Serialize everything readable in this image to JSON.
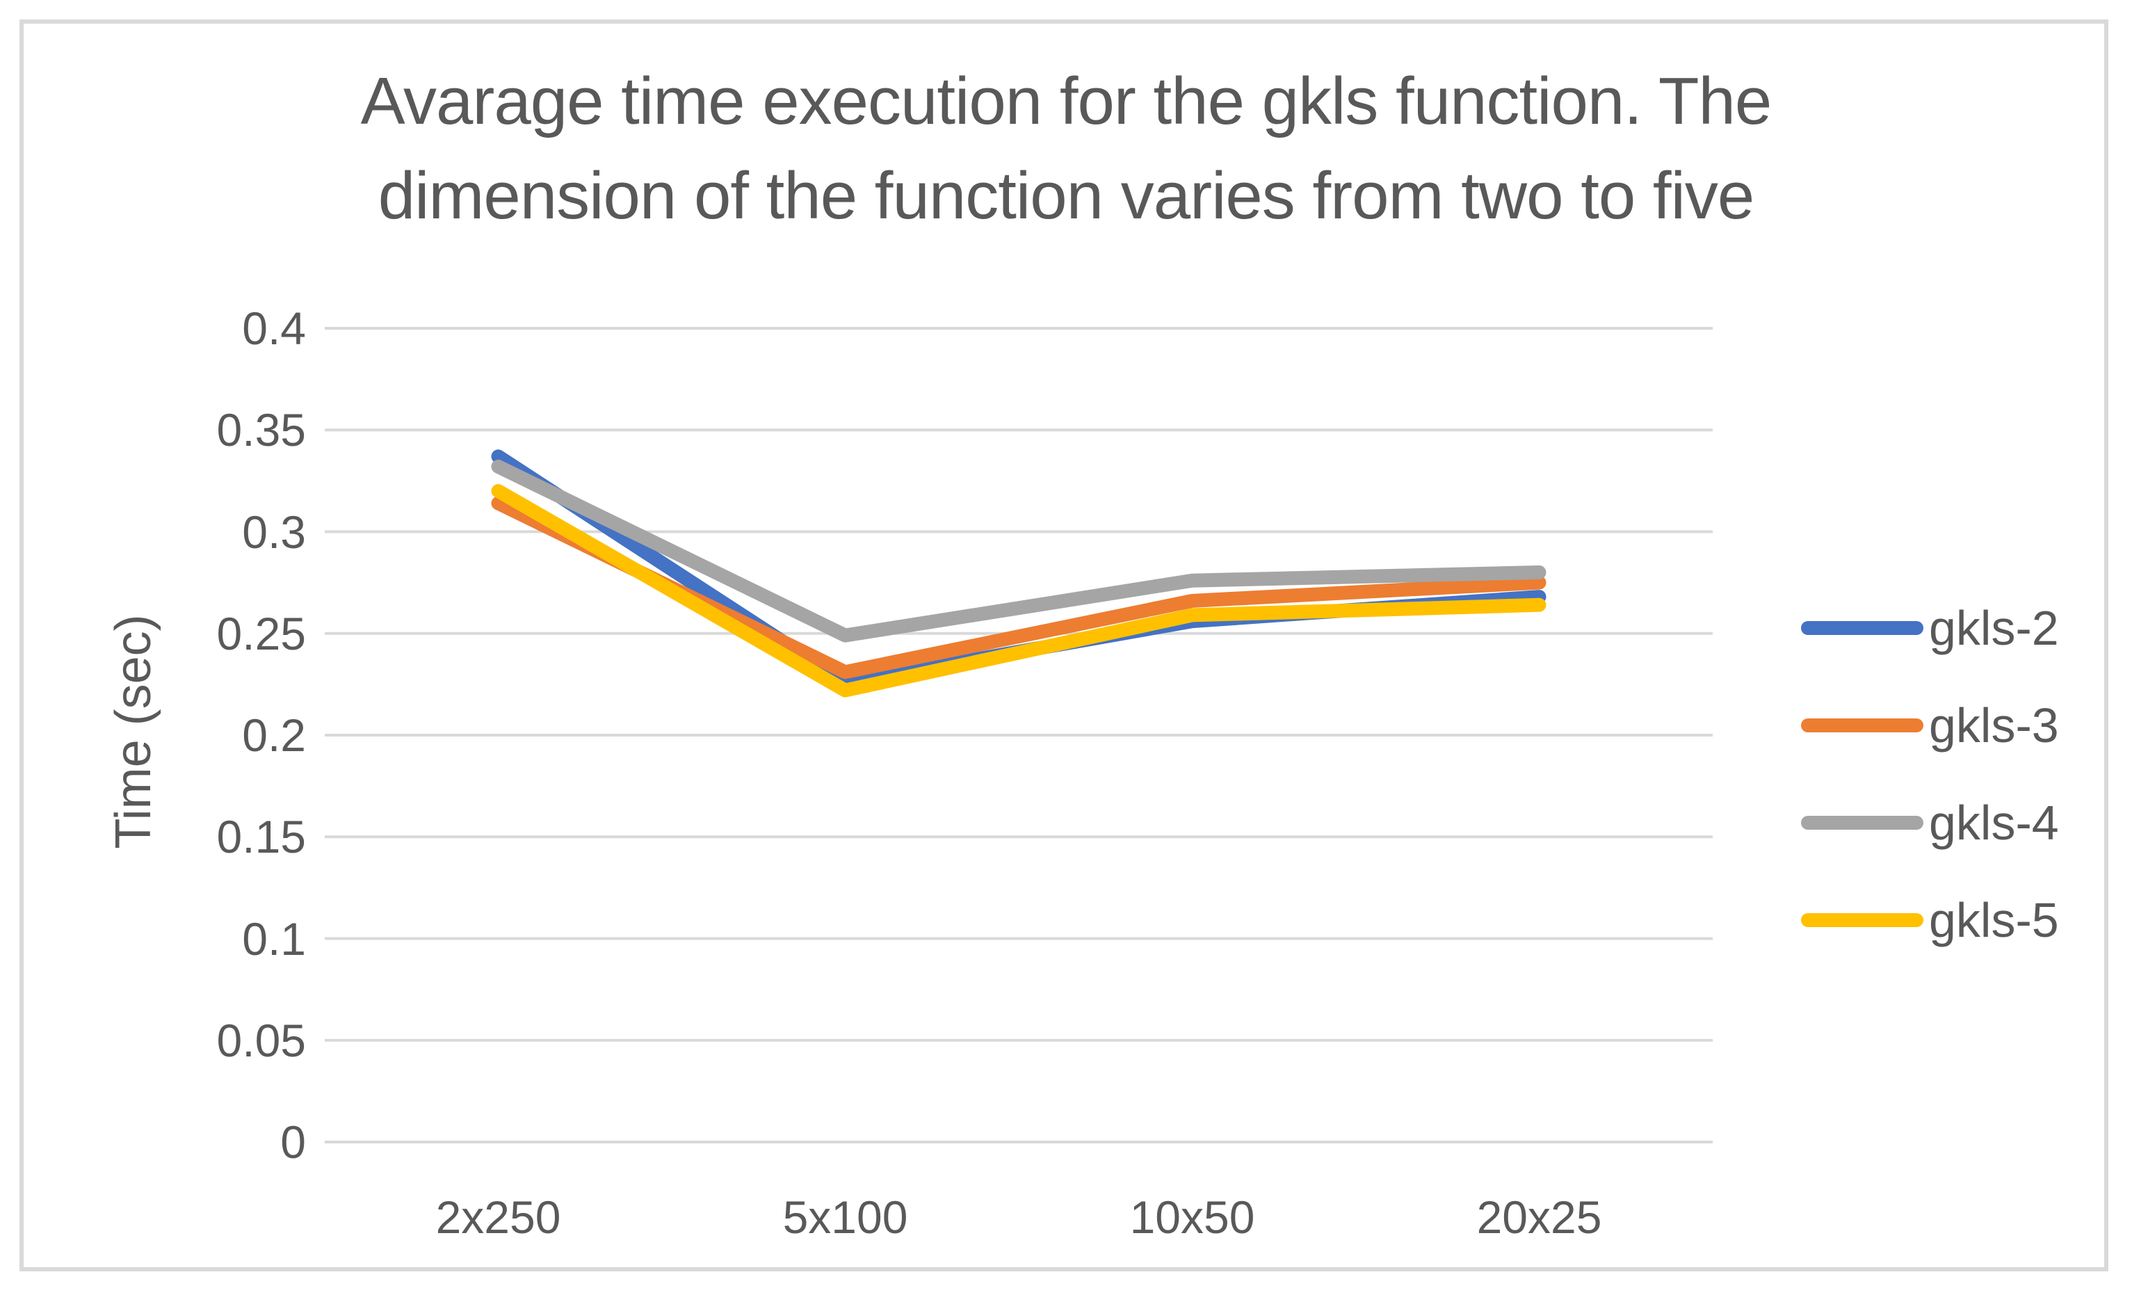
{
  "chart_data": {
    "type": "line",
    "title": "Avarage time execution for the gkls function. The dimension of the function varies from two to five",
    "title_line1": "Avarage time execution for the gkls function. The",
    "title_line2": "dimension of the function varies from two to five",
    "ylabel": "Time (sec)",
    "xlabel": "",
    "categories": [
      "2x250",
      "5x100",
      "10x50",
      "20x25"
    ],
    "series": [
      {
        "name": "gkls-2",
        "color": "#4472C4",
        "values": [
          0.337,
          0.226,
          0.256,
          0.268
        ]
      },
      {
        "name": "gkls-3",
        "color": "#ED7D31",
        "values": [
          0.314,
          0.231,
          0.266,
          0.275
        ]
      },
      {
        "name": "gkls-4",
        "color": "#A5A5A5",
        "values": [
          0.332,
          0.249,
          0.276,
          0.28
        ]
      },
      {
        "name": "gkls-5",
        "color": "#FFC000",
        "values": [
          0.32,
          0.222,
          0.259,
          0.264
        ]
      }
    ],
    "yticks": [
      {
        "label": "0",
        "value": 0
      },
      {
        "label": "0.05",
        "value": 0.05
      },
      {
        "label": "0.1",
        "value": 0.1
      },
      {
        "label": "0.15",
        "value": 0.15
      },
      {
        "label": "0.2",
        "value": 0.2
      },
      {
        "label": "0.25",
        "value": 0.25
      },
      {
        "label": "0.3",
        "value": 0.3
      },
      {
        "label": "0.35",
        "value": 0.35
      },
      {
        "label": "0.4",
        "value": 0.4
      }
    ],
    "ylim": [
      0,
      0.4
    ],
    "grid": true,
    "legend_position": "right",
    "colors": {
      "grid": "#D9D9D9",
      "text": "#595959",
      "border": "#D9D9D9",
      "background": "#FFFFFF"
    }
  }
}
